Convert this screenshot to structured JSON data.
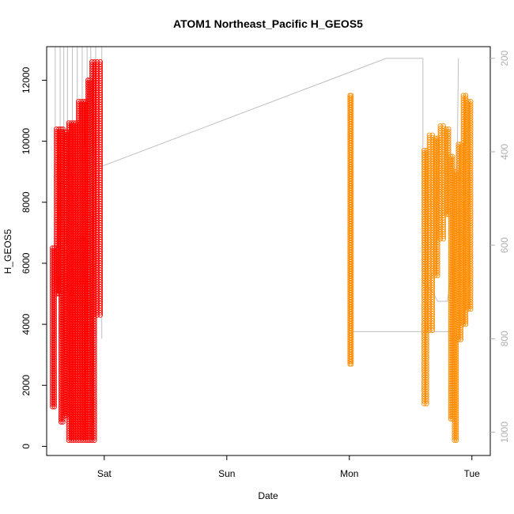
{
  "chart_data": {
    "type": "scatter",
    "title": "ATOM1 Northeast_Pacific H_GEOS5",
    "xlabel": "Date",
    "ylabel": "H_GEOS5",
    "x_ticks": [
      "Sat",
      "Sun",
      "Mon",
      "Tue"
    ],
    "x_tick_values": [
      1,
      2,
      3,
      4
    ],
    "xlim": [
      0.53,
      4.15
    ],
    "ylim": [
      -300,
      13100
    ],
    "y_ticks": [
      0,
      2000,
      4000,
      6000,
      8000,
      10000,
      12000
    ],
    "right_axis": {
      "label": "",
      "ticks": [
        200,
        400,
        600,
        800,
        1000
      ],
      "ylim_reversed": [
        175,
        1050
      ],
      "color": "#b0b0b0"
    },
    "marker": "open-circle",
    "series": [
      {
        "color": "#ff0000",
        "segments": [
          {
            "x0": 0.57,
            "x1": 0.6,
            "ymin": 1300,
            "ymax": 6500
          },
          {
            "x0": 0.6,
            "x1": 0.64,
            "ymin": 5000,
            "ymax": 10400
          },
          {
            "x0": 0.64,
            "x1": 0.67,
            "ymin": 800,
            "ymax": 10400
          },
          {
            "x0": 0.67,
            "x1": 0.7,
            "ymin": 1000,
            "ymax": 10300
          },
          {
            "x0": 0.7,
            "x1": 0.74,
            "ymin": 200,
            "ymax": 10600
          },
          {
            "x0": 0.74,
            "x1": 0.78,
            "ymin": 200,
            "ymax": 10600
          },
          {
            "x0": 0.78,
            "x1": 0.82,
            "ymin": 200,
            "ymax": 11300
          },
          {
            "x0": 0.82,
            "x1": 0.86,
            "ymin": 200,
            "ymax": 11300
          },
          {
            "x0": 0.86,
            "x1": 0.89,
            "ymin": 200,
            "ymax": 12000
          },
          {
            "x0": 0.89,
            "x1": 0.93,
            "ymin": 200,
            "ymax": 12600
          },
          {
            "x0": 0.93,
            "x1": 0.98,
            "ymin": 4300,
            "ymax": 12600
          }
        ]
      },
      {
        "color": "#ff8c00",
        "segments": [
          {
            "x0": 3.0,
            "x1": 3.02,
            "ymin": 2700,
            "ymax": 11500
          },
          {
            "x0": 3.6,
            "x1": 3.64,
            "ymin": 1400,
            "ymax": 9700
          },
          {
            "x0": 3.64,
            "x1": 3.69,
            "ymin": 3800,
            "ymax": 10200
          },
          {
            "x0": 3.69,
            "x1": 3.73,
            "ymin": 5600,
            "ymax": 10100
          },
          {
            "x0": 3.73,
            "x1": 3.78,
            "ymin": 6800,
            "ymax": 10500
          },
          {
            "x0": 3.78,
            "x1": 3.82,
            "ymin": 7600,
            "ymax": 10400
          },
          {
            "x0": 3.82,
            "x1": 3.85,
            "ymin": 900,
            "ymax": 9500
          },
          {
            "x0": 3.85,
            "x1": 3.88,
            "ymin": 200,
            "ymax": 9000
          },
          {
            "x0": 3.88,
            "x1": 3.92,
            "ymin": 3500,
            "ymax": 9900
          },
          {
            "x0": 3.92,
            "x1": 3.96,
            "ymin": 4000,
            "ymax": 11500
          },
          {
            "x0": 3.96,
            "x1": 4.0,
            "ymin": 4500,
            "ymax": 11300
          }
        ]
      }
    ],
    "pressure_trace_color": "#bebebe"
  }
}
